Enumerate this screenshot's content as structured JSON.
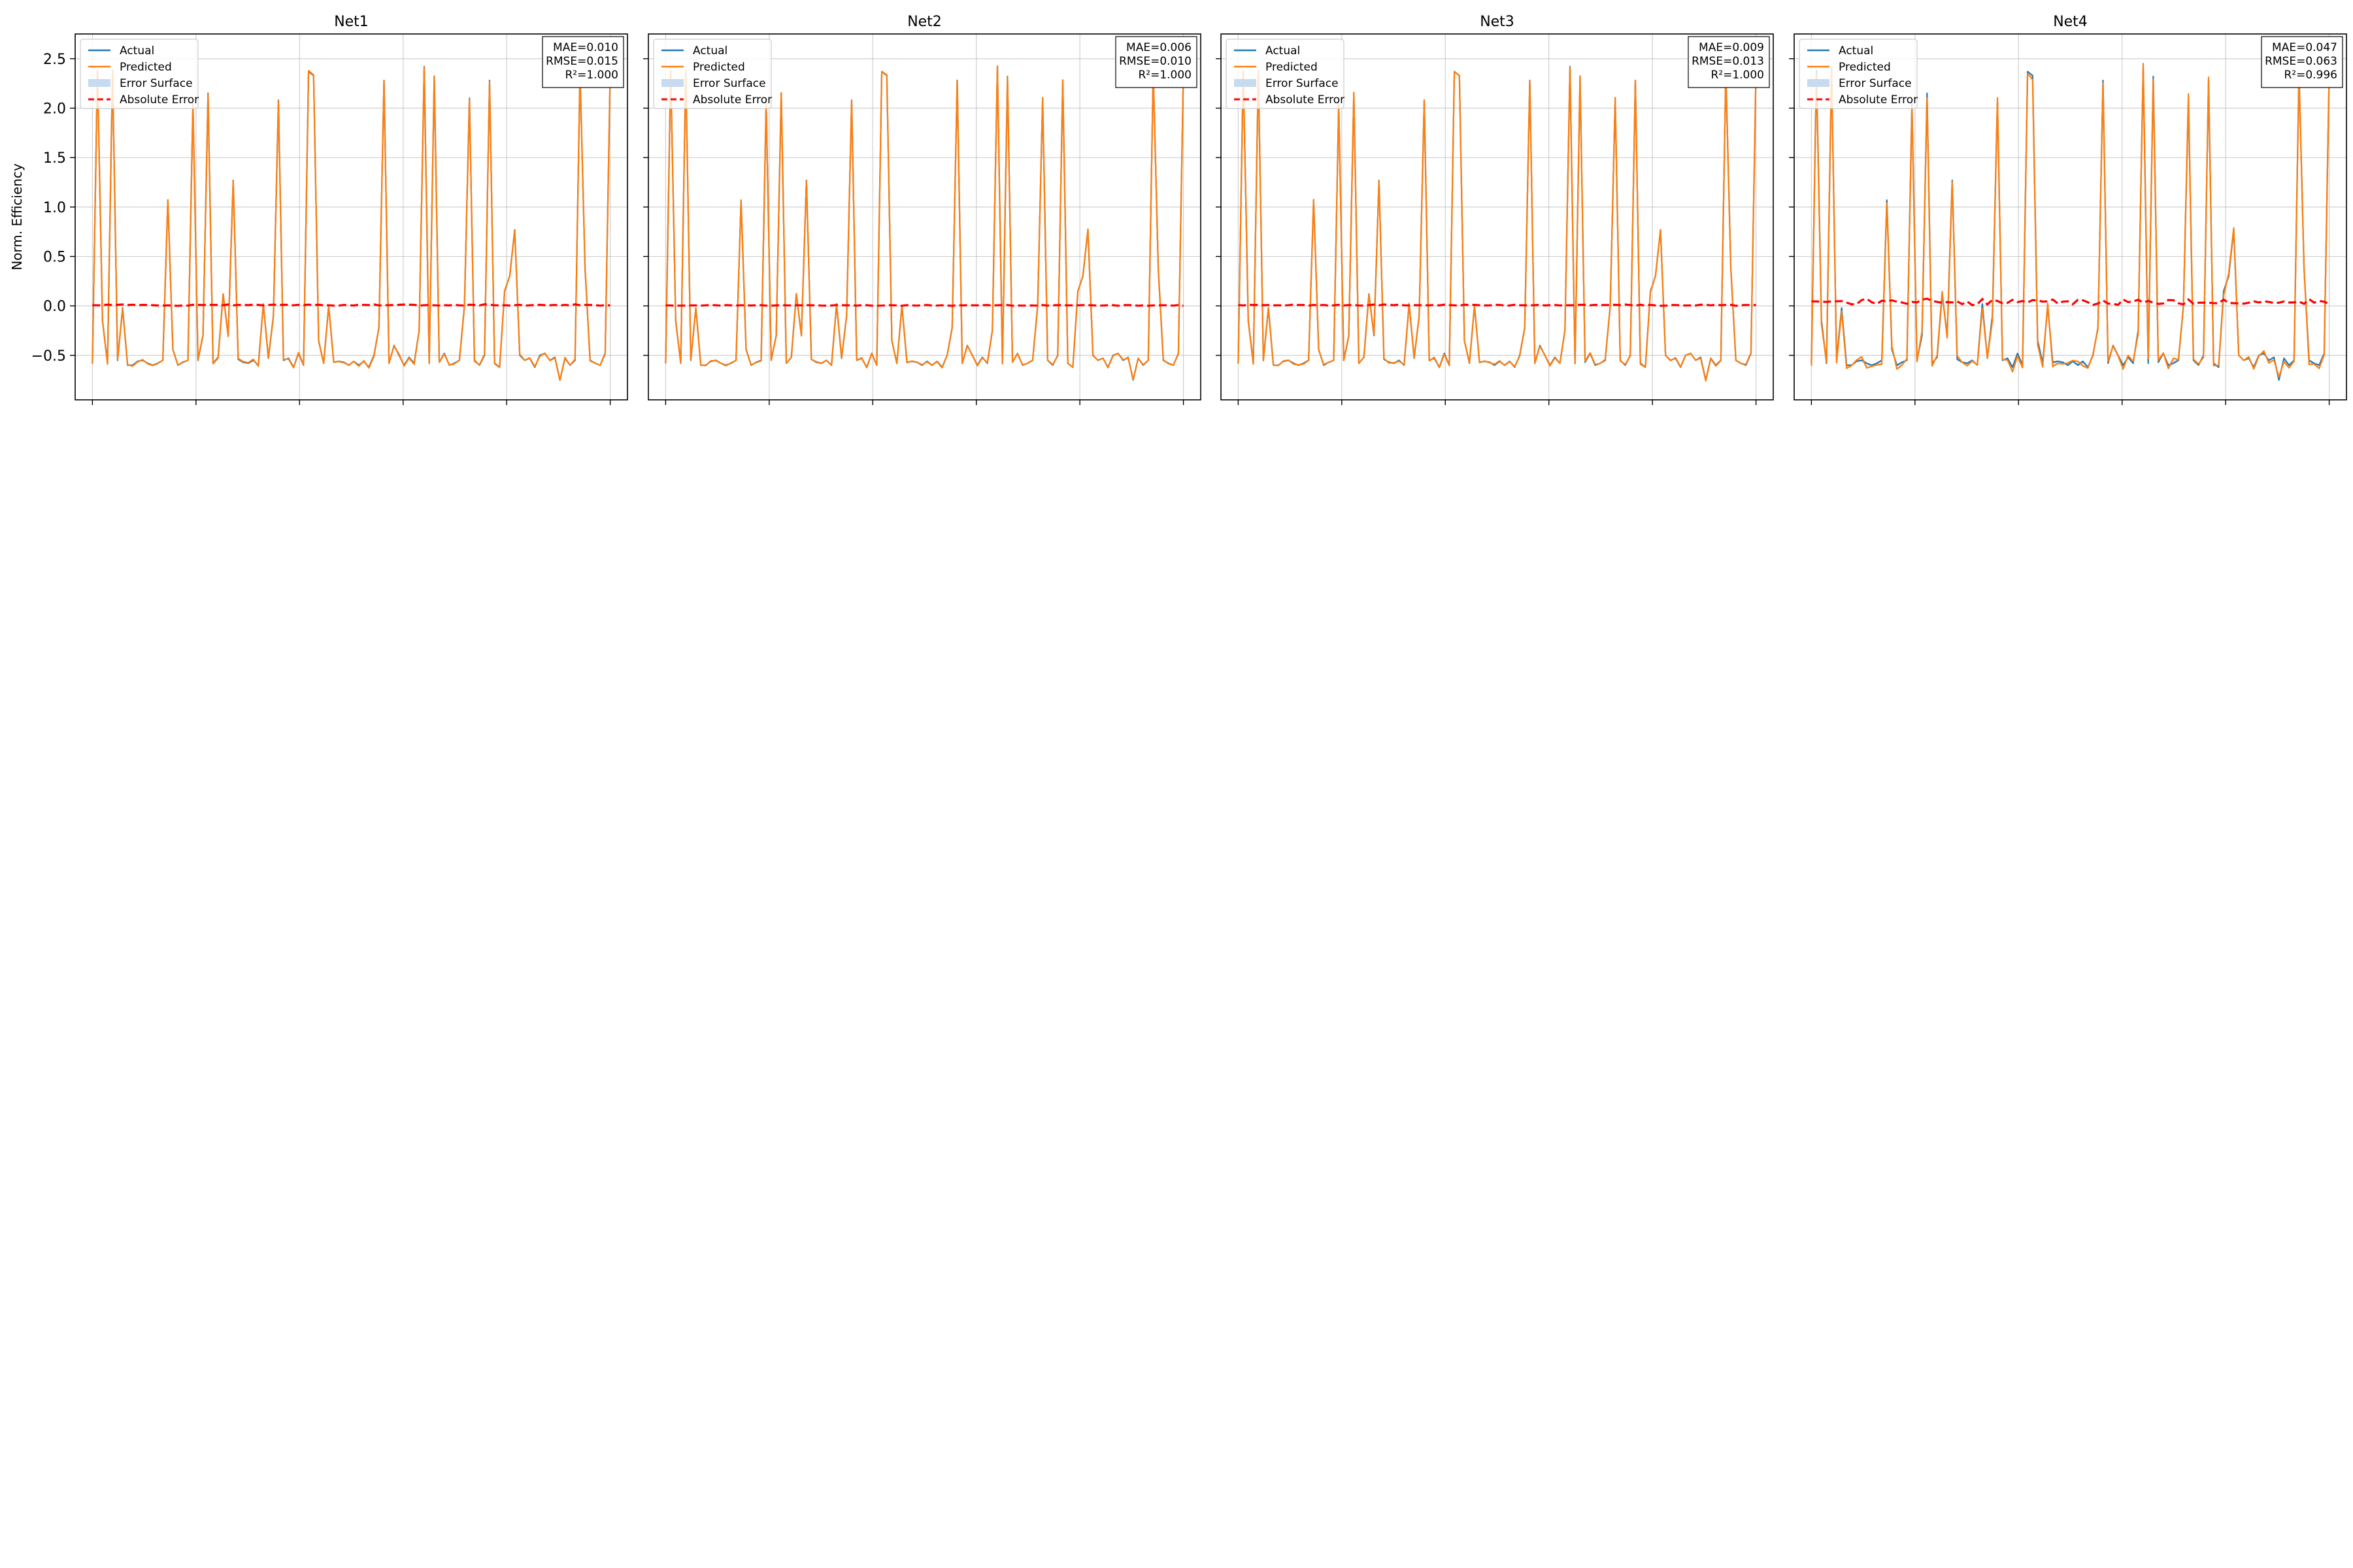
{
  "figure": {
    "ylabel": "Norm. Efficiency"
  },
  "legend": {
    "placement": "upper-left",
    "items": [
      {
        "label": "Actual",
        "kind": "line",
        "color": "#1f77b4"
      },
      {
        "label": "Predicted",
        "kind": "line",
        "color": "#ff7f0e"
      },
      {
        "label": "Error Surface",
        "kind": "patch",
        "color": "#c6dbef"
      },
      {
        "label": "Absolute Error",
        "kind": "dashed",
        "color": "#ff0000"
      }
    ]
  },
  "colors": {
    "actual": "#1f77b4",
    "predicted": "#ff7f0e",
    "error_surface": "#c6dbef",
    "absolute_error": "#ff0000",
    "grid": "#b0b0b0"
  },
  "chart_data": [
    {
      "type": "line",
      "title": "Net1",
      "xlim": [
        -5,
        155
      ],
      "ylim": [
        -0.95,
        2.75
      ],
      "yticks": [
        -0.5,
        0.0,
        0.5,
        1.0,
        1.5,
        2.0,
        2.5
      ],
      "ytick_labels": [
        "−0.5",
        "0.0",
        "0.5",
        "1.0",
        "1.5",
        "2.0",
        "2.5"
      ],
      "xticks": [
        0,
        30,
        60,
        90,
        120,
        150
      ],
      "grid": true,
      "metrics": [
        "MAE=0.010",
        "RMSE=0.015",
        "R²=1.000"
      ],
      "error_scale": 0.01,
      "error_seed": 11
    },
    {
      "type": "line",
      "title": "Net2",
      "xlim": [
        -5,
        155
      ],
      "ylim": [
        -0.95,
        2.75
      ],
      "yticks": [
        -0.5,
        0.0,
        0.5,
        1.0,
        1.5,
        2.0,
        2.5
      ],
      "ytick_labels": [
        "−0.5",
        "0.0",
        "0.5",
        "1.0",
        "1.5",
        "2.0",
        "2.5"
      ],
      "xticks": [
        0,
        30,
        60,
        90,
        120,
        150
      ],
      "grid": true,
      "metrics": [
        "MAE=0.006",
        "RMSE=0.010",
        "R²=1.000"
      ],
      "error_scale": 0.006,
      "error_seed": 23
    },
    {
      "type": "line",
      "title": "Net3",
      "xlim": [
        -5,
        155
      ],
      "ylim": [
        -0.95,
        2.75
      ],
      "yticks": [
        -0.5,
        0.0,
        0.5,
        1.0,
        1.5,
        2.0,
        2.5
      ],
      "ytick_labels": [
        "−0.5",
        "0.0",
        "0.5",
        "1.0",
        "1.5",
        "2.0",
        "2.5"
      ],
      "xticks": [
        0,
        30,
        60,
        90,
        120,
        150
      ],
      "grid": true,
      "metrics": [
        "MAE=0.009",
        "RMSE=0.013",
        "R²=1.000"
      ],
      "error_scale": 0.009,
      "error_seed": 37
    },
    {
      "type": "line",
      "title": "Net4",
      "xlim": [
        -5,
        155
      ],
      "ylim": [
        -0.95,
        2.75
      ],
      "yticks": [
        -0.5,
        0.0,
        0.5,
        1.0,
        1.5,
        2.0,
        2.5
      ],
      "ytick_labels": [
        "−0.5",
        "0.0",
        "0.5",
        "1.0",
        "1.5",
        "2.0",
        "2.5"
      ],
      "xticks": [
        0,
        30,
        60,
        90,
        120,
        150
      ],
      "grid": true,
      "metrics": [
        "MAE=0.047",
        "RMSE=0.063",
        "R²=0.996"
      ],
      "error_scale": 0.047,
      "error_seed": 53
    }
  ],
  "actual_series": [
    -0.58,
    2.38,
    -0.15,
    -0.58,
    2.38,
    -0.55,
    -0.02,
    -0.6,
    -0.6,
    -0.56,
    -0.55,
    -0.58,
    -0.6,
    -0.58,
    -0.55,
    1.07,
    -0.44,
    -0.6,
    -0.57,
    -0.55,
    2.05,
    -0.55,
    -0.3,
    2.15,
    -0.58,
    -0.52,
    0.12,
    -0.3,
    1.27,
    -0.54,
    -0.57,
    -0.58,
    -0.55,
    -0.6,
    0.02,
    -0.53,
    -0.1,
    2.08,
    -0.55,
    -0.53,
    -0.62,
    -0.48,
    -0.6,
    2.37,
    2.33,
    -0.35,
    -0.58,
    0.0,
    -0.57,
    -0.56,
    -0.57,
    -0.6,
    -0.56,
    -0.6,
    -0.56,
    -0.62,
    -0.5,
    -0.22,
    2.28,
    -0.58,
    -0.4,
    -0.5,
    -0.6,
    -0.52,
    -0.58,
    -0.25,
    2.42,
    -0.58,
    2.32,
    -0.57,
    -0.48,
    -0.6,
    -0.58,
    -0.55,
    0.0,
    2.1,
    -0.55,
    -0.6,
    -0.5,
    2.28,
    -0.58,
    -0.62,
    0.15,
    0.3,
    0.77,
    -0.5,
    -0.55,
    -0.53,
    -0.62,
    -0.5,
    -0.48,
    -0.55,
    -0.52,
    -0.75,
    -0.53,
    -0.6,
    -0.55,
    2.37,
    0.38,
    -0.55,
    -0.58,
    -0.6,
    -0.48,
    2.37
  ]
}
